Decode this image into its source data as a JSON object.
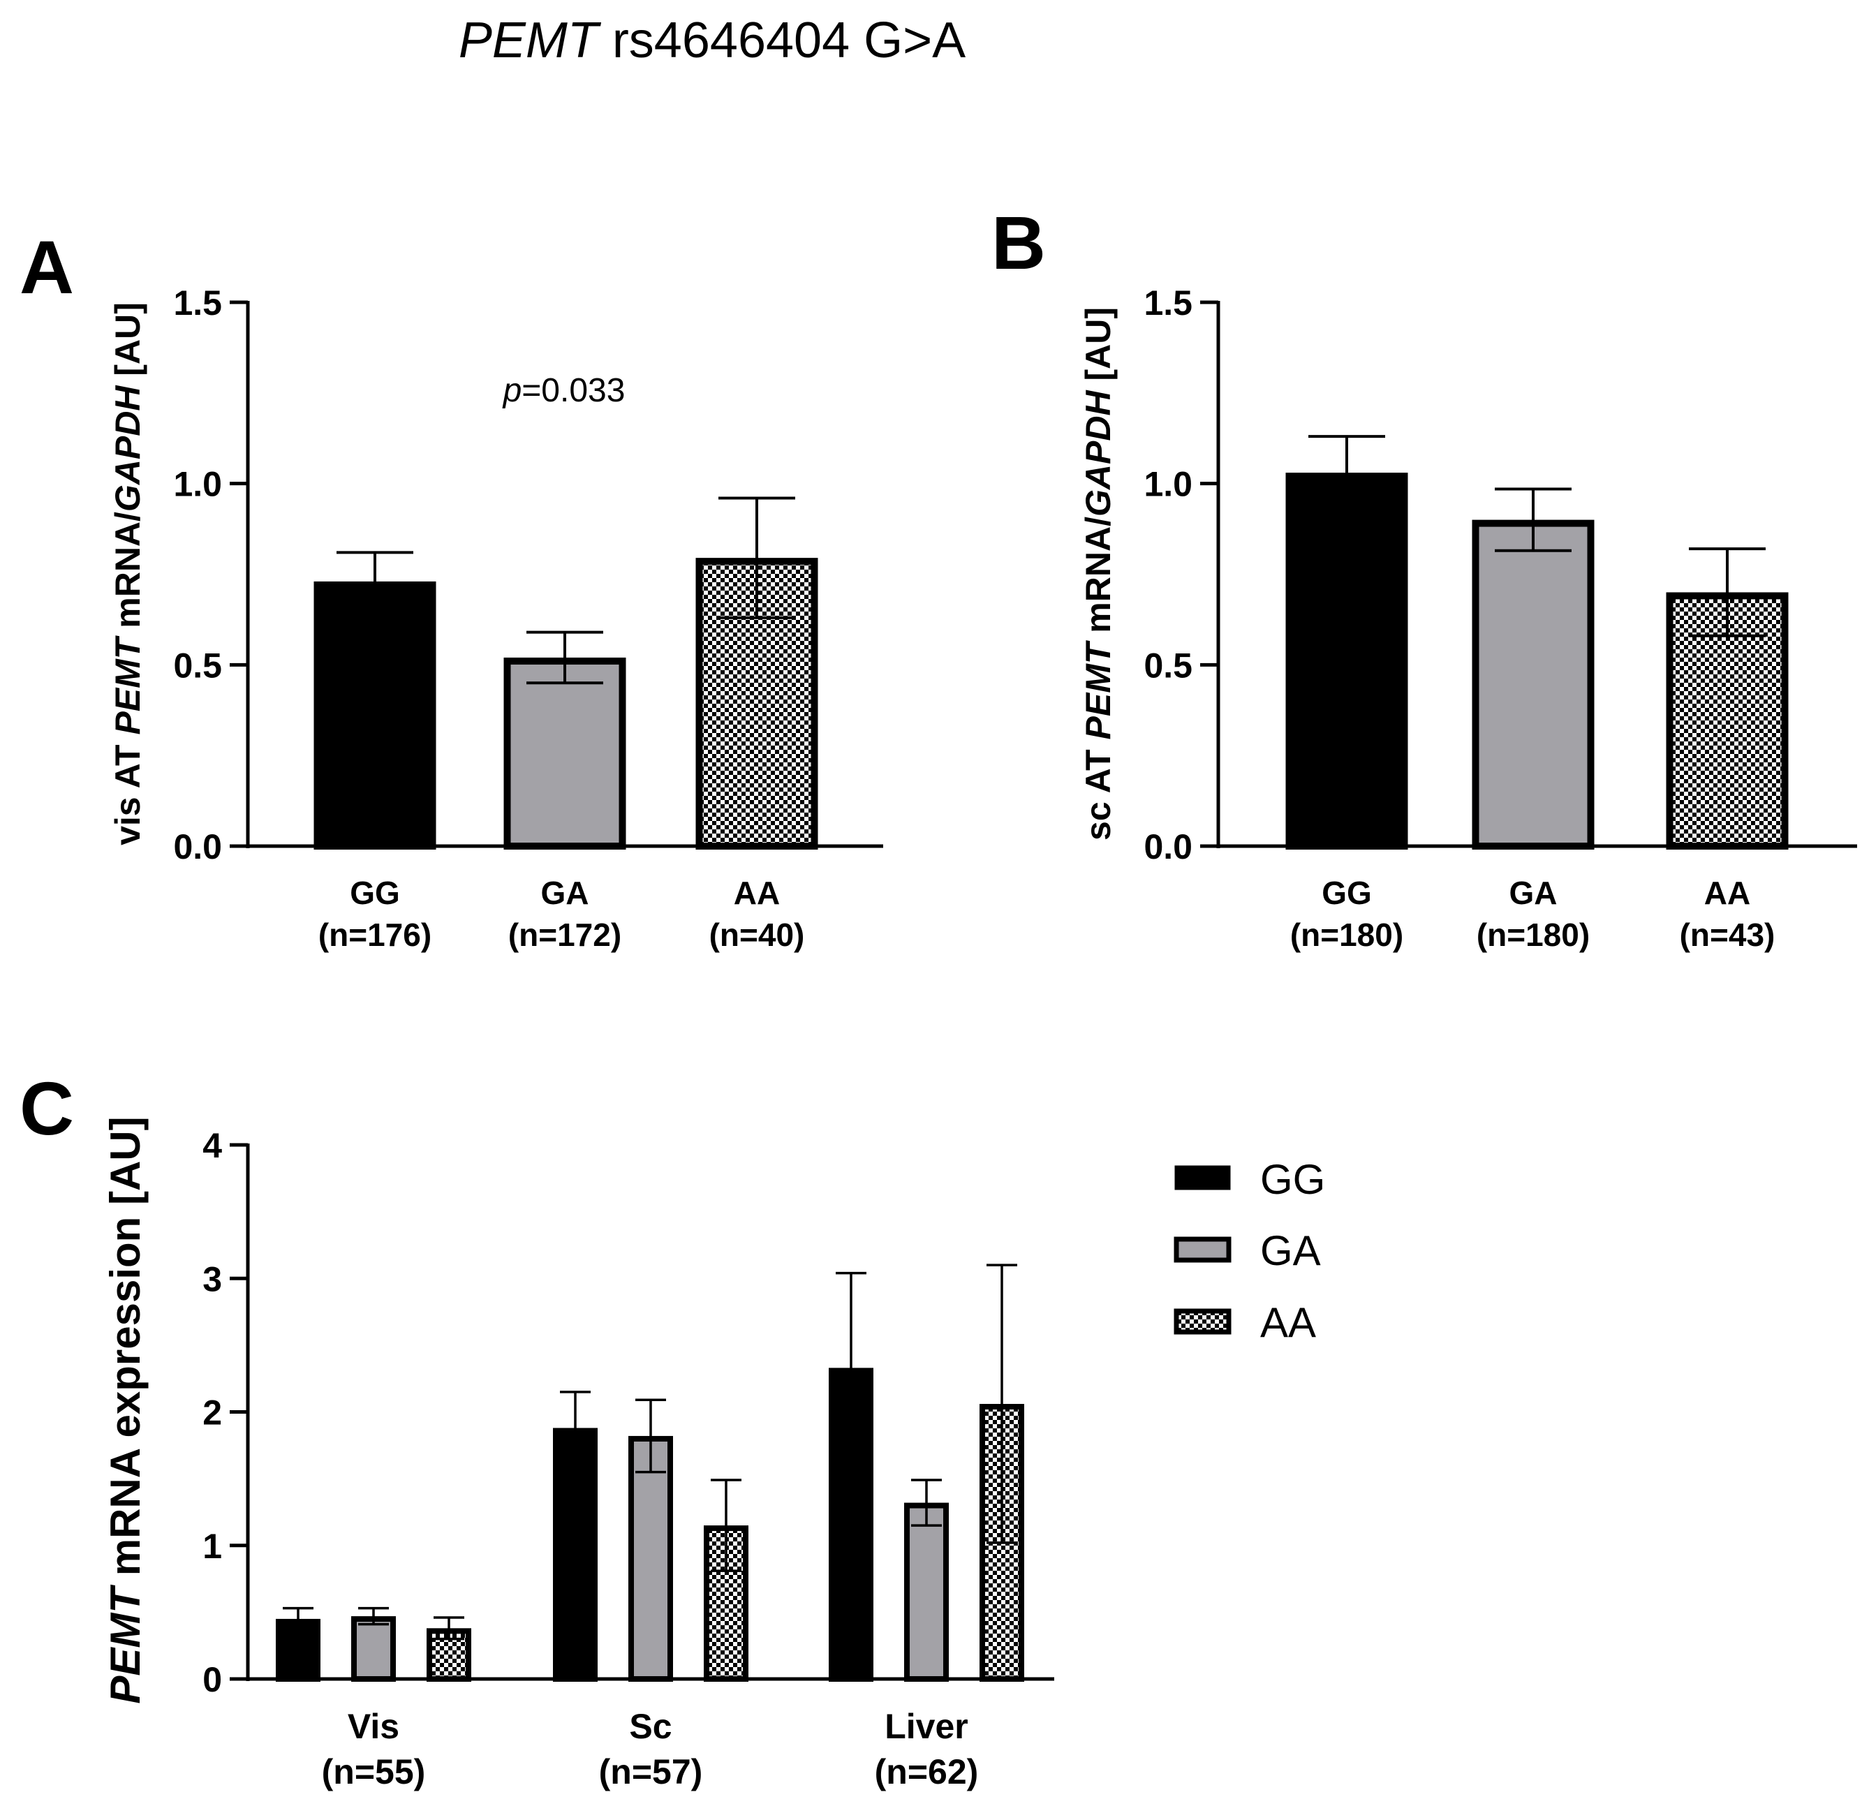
{
  "figure_title": {
    "gene": "PEMT",
    "rest": " rs4646404 G>A"
  },
  "colors": {
    "GG": "#000000",
    "GA": "#a3a2a7",
    "AA_pattern": "checker",
    "axis": "#000000"
  },
  "chart_data": [
    {
      "panel": "A",
      "type": "bar",
      "ylabel_parts": [
        {
          "text": "vis AT ",
          "italic": false
        },
        {
          "text": "PEMT",
          "italic": true
        },
        {
          "text": " mRNA/",
          "italic": false
        },
        {
          "text": "GAPDH",
          "italic": true
        },
        {
          "text": " [AU]",
          "italic": false
        }
      ],
      "ylim": [
        0,
        1.5
      ],
      "yticks": [
        "0.0",
        "0.5",
        "1.0",
        "1.5"
      ],
      "categories": [
        {
          "genotype": "GG",
          "n": "(n=176)"
        },
        {
          "genotype": "GA",
          "n": "(n=172)"
        },
        {
          "genotype": "AA",
          "n": "(n=40)"
        }
      ],
      "values": [
        0.73,
        0.52,
        0.795
      ],
      "errors": [
        0.08,
        0.07,
        0.165
      ],
      "fills": [
        "GG",
        "GA",
        "AA"
      ],
      "annotation": {
        "p_italic": "p",
        "p_value": "=0.033"
      }
    },
    {
      "panel": "B",
      "type": "bar",
      "ylabel_parts": [
        {
          "text": "sc AT ",
          "italic": false
        },
        {
          "text": "PEMT",
          "italic": true
        },
        {
          "text": " mRNA/",
          "italic": false
        },
        {
          "text": "GAPDH",
          "italic": true
        },
        {
          "text": " [AU]",
          "italic": false
        }
      ],
      "ylim": [
        0,
        1.5
      ],
      "yticks": [
        "0.0",
        "0.5",
        "1.0",
        "1.5"
      ],
      "categories": [
        {
          "genotype": "GG",
          "n": "(n=180)"
        },
        {
          "genotype": "GA",
          "n": "(n=180)"
        },
        {
          "genotype": "AA",
          "n": "(n=43)"
        }
      ],
      "values": [
        1.03,
        0.9,
        0.7
      ],
      "errors": [
        0.1,
        0.085,
        0.12
      ],
      "fills": [
        "GG",
        "GA",
        "AA"
      ]
    },
    {
      "panel": "C",
      "type": "bar",
      "ylabel_parts": [
        {
          "text": "PEMT",
          "italic": true
        },
        {
          "text": " mRNA expression [AU]",
          "italic": false
        }
      ],
      "ylim": [
        0,
        4
      ],
      "yticks": [
        "0",
        "1",
        "2",
        "3",
        "4"
      ],
      "groups": [
        {
          "name": "Vis",
          "n": "(n=55)"
        },
        {
          "name": "Sc",
          "n": "(n=57)"
        },
        {
          "name": "Liver",
          "n": "(n=62)"
        }
      ],
      "series": [
        {
          "name": "GG",
          "values": [
            0.45,
            1.88,
            2.33
          ],
          "errors": [
            0.08,
            0.27,
            0.71
          ]
        },
        {
          "name": "GA",
          "values": [
            0.47,
            1.82,
            1.32
          ],
          "errors": [
            0.06,
            0.27,
            0.17
          ]
        },
        {
          "name": "AA",
          "values": [
            0.38,
            1.15,
            2.06
          ],
          "errors": [
            0.08,
            0.34,
            1.04
          ]
        }
      ],
      "legend": [
        "GG",
        "GA",
        "AA"
      ]
    }
  ]
}
